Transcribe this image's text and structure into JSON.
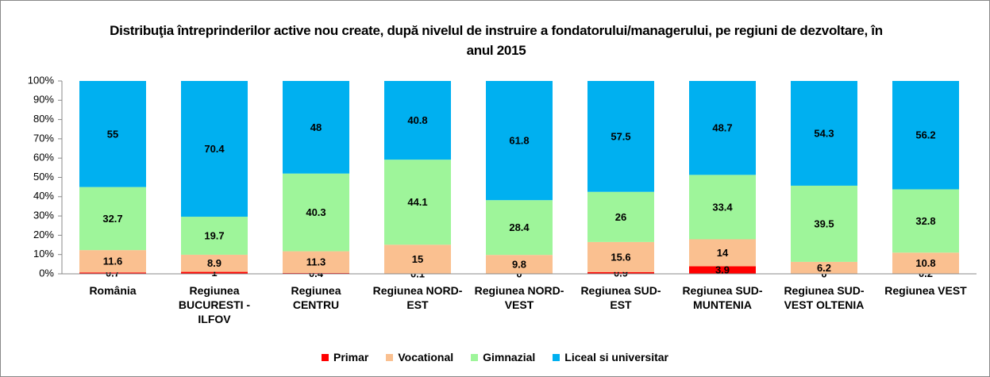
{
  "chart_data": {
    "type": "stacked_bar",
    "title": "Distribuţia întreprinderilor active nou create, după nivelul de instruire a fondatorului/managerului, pe regiuni de dezvoltare, în anul 2015",
    "categories": [
      "România",
      "Regiunea BUCURESTI - ILFOV",
      "Regiunea CENTRU",
      "Regiunea NORD-EST",
      "Regiunea NORD-VEST",
      "Regiunea SUD-EST",
      "Regiunea SUD-MUNTENIA",
      "Regiunea SUD-VEST OLTENIA",
      "Regiunea VEST"
    ],
    "series": [
      {
        "name": "Primar",
        "color": "#ff0000",
        "values": [
          0.7,
          1,
          0.4,
          0.1,
          0,
          0.9,
          3.9,
          0,
          0.2
        ]
      },
      {
        "name": "Vocational",
        "color": "#fac090",
        "values": [
          11.6,
          8.9,
          11.3,
          15,
          9.8,
          15.6,
          14,
          6.2,
          10.8
        ]
      },
      {
        "name": "Gimnazial",
        "color": "#9ef59a",
        "values": [
          32.7,
          19.7,
          40.3,
          44.1,
          28.4,
          26,
          33.4,
          39.5,
          32.8
        ]
      },
      {
        "name": "Liceal si universitar",
        "color": "#00b0f0",
        "values": [
          55,
          70.4,
          48,
          40.8,
          61.8,
          57.5,
          48.7,
          54.3,
          56.2
        ]
      }
    ],
    "ylim": [
      0,
      100
    ],
    "yticks": [
      {
        "value": 0,
        "label": "0%"
      },
      {
        "value": 10,
        "label": "10%"
      },
      {
        "value": 20,
        "label": "20%"
      },
      {
        "value": 30,
        "label": "30%"
      },
      {
        "value": 40,
        "label": "40%"
      },
      {
        "value": 50,
        "label": "50%"
      },
      {
        "value": 60,
        "label": "60%"
      },
      {
        "value": 70,
        "label": "70%"
      },
      {
        "value": 80,
        "label": "80%"
      },
      {
        "value": 90,
        "label": "90%"
      },
      {
        "value": 100,
        "label": "100%"
      }
    ],
    "grid": false,
    "legend": "bottom"
  }
}
